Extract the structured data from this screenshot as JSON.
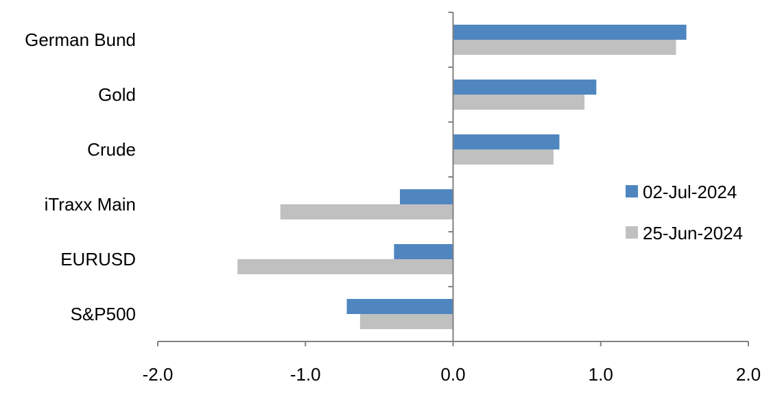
{
  "chart_data": {
    "type": "bar",
    "orientation": "horizontal",
    "categories": [
      "German Bund",
      "Gold",
      "Crude",
      "iTraxx Main",
      "EURUSD",
      "S&P500"
    ],
    "series": [
      {
        "name": "02-Jul-2024",
        "color": "#4f86c0",
        "values": [
          1.58,
          0.97,
          0.72,
          -0.36,
          -0.4,
          -0.72
        ]
      },
      {
        "name": "25-Jun-2024",
        "color": "#c0c0c0",
        "values": [
          1.51,
          0.89,
          0.68,
          -1.17,
          -1.46,
          -0.63
        ]
      }
    ],
    "xlim": [
      -2.0,
      2.0
    ],
    "xticks": [
      "-2.0",
      "-1.0",
      "0.0",
      "1.0",
      "2.0"
    ],
    "xtick_values": [
      -2,
      -1,
      0,
      1,
      2
    ],
    "grid": false,
    "legend_position": "right"
  }
}
